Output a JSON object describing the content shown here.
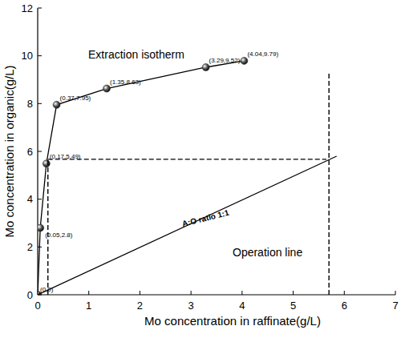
{
  "chart_data": {
    "type": "scatter",
    "x_label": "Mo concentration in raffinate(g/L)",
    "y_label": "Mo concentration in organic(g/L)",
    "annotations": [
      "Extraction isotherm",
      "Operation line",
      "A:O ratio 1:1"
    ],
    "xlim": [
      0,
      7
    ],
    "ylim": [
      0,
      12
    ],
    "xticks": [
      0,
      1,
      2,
      3,
      4,
      5,
      6,
      7
    ],
    "yticks": [
      0,
      2,
      4,
      6,
      8,
      10,
      12
    ],
    "grid": false,
    "series": [
      {
        "type": "line",
        "color": "#000000",
        "marker": "circle",
        "line_style": "solid",
        "x": [
          0,
          0.05,
          0.17,
          0.37,
          1.35,
          3.29,
          4.04
        ],
        "values": [
          0,
          2.8,
          5.49,
          7.95,
          8.63,
          9.52,
          9.79
        ],
        "data_labels": true,
        "value_labels": [
          "(0,0)",
          "(0.05,2.8)",
          "(0.17,5.49)",
          "(0.37,7.95)",
          "(1.35,8.63)",
          "(3.29,9.52)",
          "(4.04,9.79)"
        ]
      },
      {
        "type": "line",
        "color": "#000000",
        "marker": "none",
        "line_style": "solid",
        "x": [
          0,
          5.85
        ],
        "values": [
          0,
          5.8
        ]
      },
      {
        "type": "line",
        "color": "#000000",
        "marker": "none",
        "line_style": "dashed",
        "x": [
          0.2,
          5.65
        ],
        "values": [
          5.67,
          5.67
        ]
      },
      {
        "type": "line",
        "color": "#000000",
        "marker": "none",
        "line_style": "dashed",
        "x": [
          0.2,
          0.2
        ],
        "values": [
          0,
          5.67
        ]
      },
      {
        "type": "line",
        "color": "#000000",
        "marker": "none",
        "line_style": "dashed",
        "x": [
          5.7,
          5.7
        ],
        "values": [
          0,
          9.3
        ]
      }
    ]
  }
}
